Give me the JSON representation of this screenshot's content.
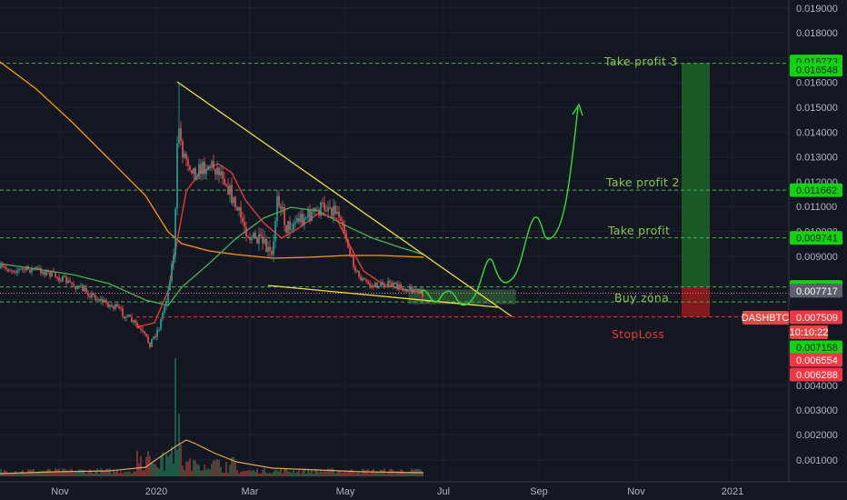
{
  "chart_data": {
    "type": "candlestick",
    "symbol": "DASHBTC",
    "countdown": "10:10:22",
    "y_ticks": [
      "0.019000",
      "0.018000",
      "0.017000",
      "0.016000",
      "0.015000",
      "0.014000",
      "0.013000",
      "0.012000",
      "0.011000",
      "0.010000",
      "0.009000",
      "0.008000",
      "0.004000",
      "0.003000",
      "0.002000",
      "0.001000"
    ],
    "x_ticks": [
      "Nov",
      "2020",
      "Mar",
      "May",
      "Jul",
      "Sep",
      "Nov",
      "2021"
    ],
    "annotations": {
      "take_profit_3": "Take profit 3",
      "take_profit_2": "Take profit 2",
      "take_profit_1": "Take profit",
      "buy_zone": "Buy zóna",
      "stop_loss": "StopLoss"
    },
    "levels": {
      "take_profit_3": 0.016773,
      "take_profit_2": 0.011662,
      "take_profit_1": 0.009741,
      "buy_zone_top": 0.00776,
      "current_price": 0.007717,
      "symbol_price": 0.007509,
      "buy_zone_bottom": 0.007158,
      "stop_loss": 0.006554
    },
    "price_tags": [
      {
        "label": "0.016773",
        "value": 0.016773,
        "kind": "green"
      },
      {
        "label": "0.016548",
        "value": 0.016548,
        "kind": "green"
      },
      {
        "label": "0.011662",
        "value": 0.011662,
        "kind": "green"
      },
      {
        "label": "0.009741",
        "value": 0.009741,
        "kind": "green"
      },
      {
        "label": "0.007760",
        "value": 0.00776,
        "kind": "green"
      },
      {
        "label": "0.007717",
        "value": 0.007717,
        "kind": "grey"
      },
      {
        "label": "0.007509",
        "value": 0.007509,
        "kind": "red"
      },
      {
        "label": "0.007158",
        "value": 0.007158,
        "kind": "green"
      },
      {
        "label": "0.006554",
        "value": 0.006554,
        "kind": "red"
      },
      {
        "label": "0.006288",
        "value": 0.006288,
        "kind": "red"
      }
    ],
    "colors": {
      "background": "#131722",
      "up": "#26a69a",
      "down": "#ef5350",
      "profit": "#1f8f2a",
      "annotation": "#8bc34a",
      "stop": "#e53935",
      "trend": "#f0e040",
      "projection": "#33dd33"
    }
  }
}
